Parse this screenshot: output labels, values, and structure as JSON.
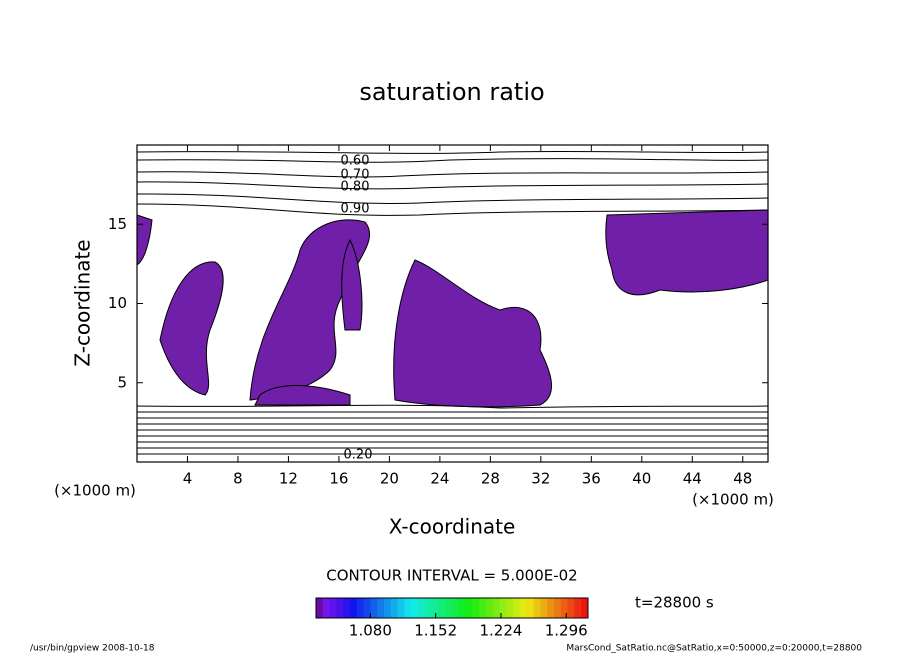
{
  "chart_data": {
    "type": "contour",
    "title": "saturation ratio",
    "x_label": "X-coordinate",
    "y_label": "Z-coordinate",
    "x_unit": "(×1000 m)",
    "y_unit": "(×1000 m)",
    "xlim": [
      0,
      50
    ],
    "ylim": [
      0,
      20
    ],
    "xticks": [
      4,
      8,
      12,
      16,
      20,
      24,
      28,
      32,
      36,
      40,
      44,
      48
    ],
    "yticks": [
      5,
      10,
      15
    ],
    "contour_labels_top": [
      "0.60",
      "0.70",
      "0.80",
      "0.90"
    ],
    "contour_labels_bottom": [
      "0.20"
    ],
    "contour_interval": "CONTOUR INTERVAL = 5.000E-02",
    "time": "t=28800 s",
    "clim": [
      1.02,
      1.32
    ],
    "colorbar_ticks": [
      {
        "value": 1.08,
        "label": "1.080"
      },
      {
        "value": 1.152,
        "label": "1.152"
      },
      {
        "value": 1.224,
        "label": "1.224"
      },
      {
        "value": 1.296,
        "label": "1.296"
      }
    ],
    "footer_left": "/usr/bin/gpview  2008-10-18",
    "footer_right": "MarsCond_SatRatio.nc@SatRatio,x=0:50000,z=0:20000,t=28800"
  }
}
